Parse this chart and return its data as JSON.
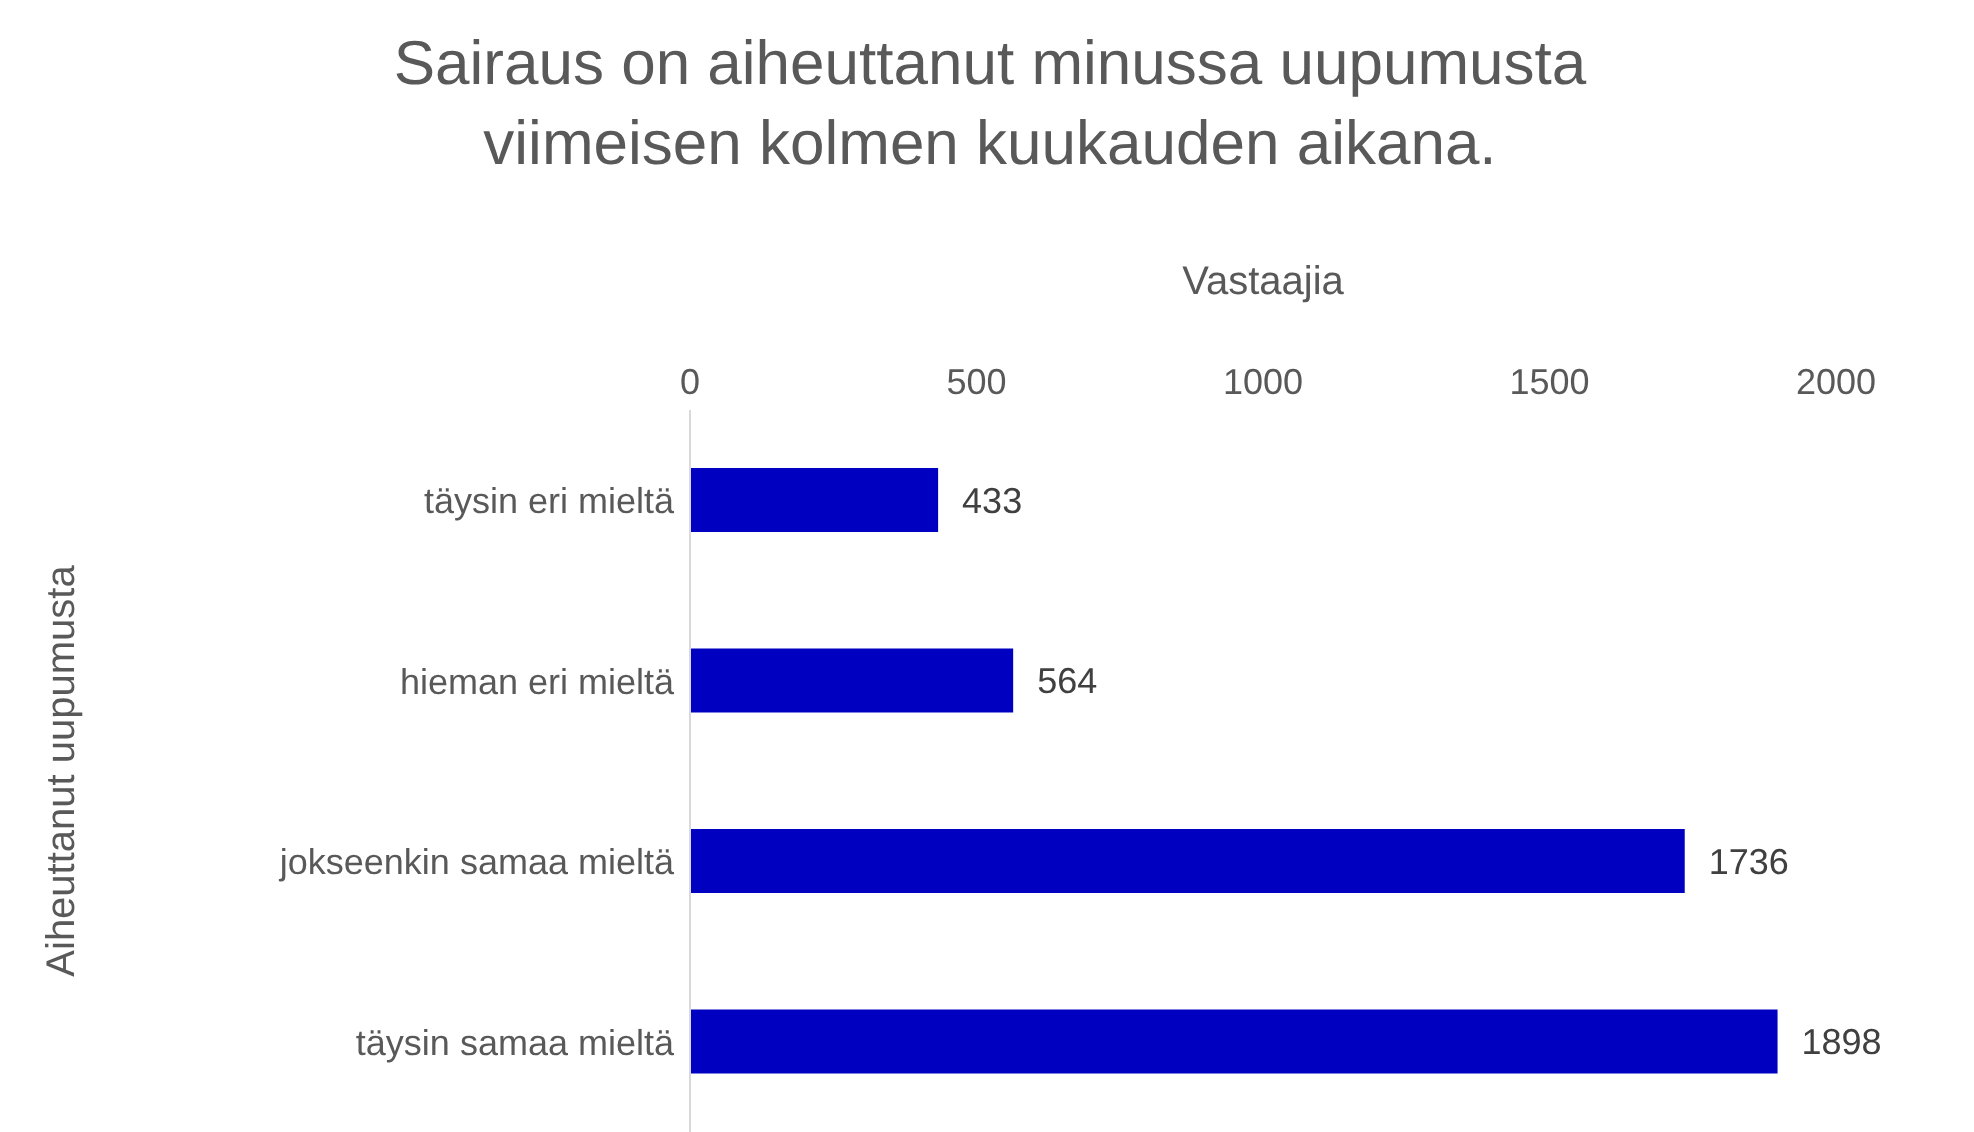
{
  "chart_data": {
    "type": "bar",
    "orientation": "horizontal",
    "title": "Sairaus on aiheuttanut minussa uupumusta viimeisen kolmen kuukauden aikana.",
    "xlabel": "Vastaajia",
    "ylabel": "Aiheuttanut uupumusta",
    "categories": [
      "täysin eri mieltä",
      "hieman eri mieltä",
      "jokseenkin samaa mieltä",
      "täysin samaa mieltä"
    ],
    "values": [
      433,
      564,
      1736,
      1898
    ],
    "color": "#0000c0",
    "xlim": [
      0,
      2000
    ],
    "xticks": [
      0,
      500,
      1000,
      1500,
      2000
    ],
    "data_labels": true
  }
}
